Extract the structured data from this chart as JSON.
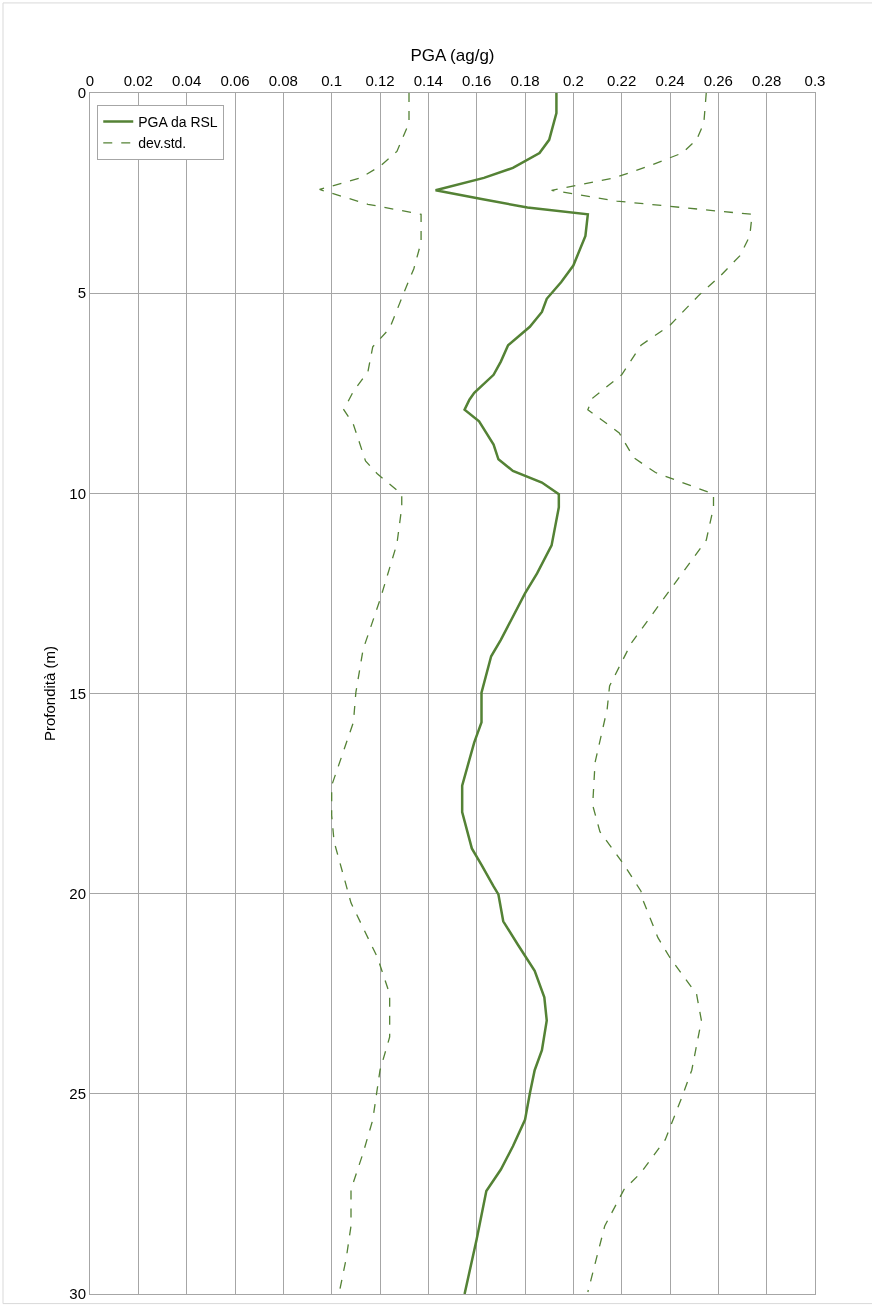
{
  "chart_data": {
    "type": "line",
    "xlabel": "PGA (ag/g)",
    "ylabel": "Profondità (m)",
    "xlim": [
      0,
      0.3
    ],
    "xticks": [
      0,
      0.02,
      0.04,
      0.06,
      0.08,
      0.1,
      0.12,
      0.14,
      0.16,
      0.18,
      0.2,
      0.22,
      0.24,
      0.26,
      0.28,
      0.3
    ],
    "ylim": [
      30,
      0
    ],
    "yticks": [
      0,
      5,
      10,
      15,
      20,
      25,
      30
    ],
    "grid": true,
    "legend": "top left",
    "marker": "none",
    "series": [
      {
        "name": "PGA da RSL",
        "color": "#548235",
        "line_style": "solid",
        "x": [
          0.193,
          0.193,
          0.19,
          0.186,
          0.175,
          0.163,
          0.143,
          0.162,
          0.181,
          0.206,
          0.205,
          0.2,
          0.195,
          0.189,
          0.187,
          0.182,
          0.173,
          0.17,
          0.167,
          0.159,
          0.157,
          0.155,
          0.161,
          0.167,
          0.169,
          0.175,
          0.187,
          0.194,
          0.194,
          0.191,
          0.185,
          0.18,
          0.17,
          0.166,
          0.162,
          0.162,
          0.159,
          0.154,
          0.154,
          0.158,
          0.162,
          0.167,
          0.169,
          0.171,
          0.177,
          0.184,
          0.188,
          0.189,
          0.187,
          0.184,
          0.182,
          0.18,
          0.175,
          0.17,
          0.164,
          0.16,
          0.155
        ],
        "values": [
          0,
          0.5,
          1.17,
          1.5,
          1.87,
          2.12,
          2.43,
          2.65,
          2.86,
          3.03,
          3.57,
          4.31,
          4.72,
          5.14,
          5.47,
          5.84,
          6.3,
          6.71,
          7.04,
          7.49,
          7.66,
          7.91,
          8.2,
          8.78,
          9.15,
          9.44,
          9.73,
          10.02,
          10.35,
          11.3,
          12.0,
          12.5,
          13.66,
          14.07,
          14.98,
          15.72,
          16.22,
          17.3,
          17.96,
          18.87,
          19.28,
          19.82,
          20.02,
          20.69,
          21.27,
          21.93,
          22.59,
          23.17,
          23.91,
          24.41,
          24.99,
          25.65,
          26.31,
          26.89,
          27.43,
          28.63,
          30.0
        ]
      },
      {
        "name": "dev.std.",
        "color": "#548235",
        "line_style": "dashed",
        "x": [
          0.132,
          0.132,
          0.127,
          0.12,
          0.112,
          0.095,
          0.115,
          0.137,
          0.137,
          0.134,
          0.13,
          0.124,
          0.117,
          0.115,
          0.109,
          0.105,
          0.109,
          0.114,
          0.119,
          0.129,
          0.129,
          0.127,
          0.12,
          0.113,
          0.11,
          0.109,
          0.1,
          0.1,
          0.101,
          0.108,
          0.119,
          0.124,
          0.124,
          0.12,
          0.117,
          0.113,
          0.108,
          0.108,
          0.106,
          0.103
        ],
        "values": [
          0,
          0.75,
          1.46,
          1.83,
          2.12,
          2.41,
          2.78,
          3.03,
          3.73,
          4.39,
          4.97,
          5.88,
          6.34,
          6.96,
          7.45,
          7.91,
          8.28,
          9.19,
          9.52,
          10.02,
          10.35,
          11.26,
          12.66,
          13.9,
          14.98,
          15.72,
          17.3,
          18.04,
          18.7,
          20.23,
          21.6,
          22.51,
          23.58,
          24.41,
          25.65,
          26.48,
          27.39,
          28.3,
          29.12,
          30.0
        ]
      },
      {
        "color": "#548235",
        "line_style": "dashed",
        "x": [
          0.255,
          0.254,
          0.251,
          0.245,
          0.231,
          0.217,
          0.191,
          0.218,
          0.26,
          0.274,
          0.273,
          0.269,
          0.261,
          0.252,
          0.24,
          0.228,
          0.22,
          0.208,
          0.206,
          0.219,
          0.225,
          0.234,
          0.258,
          0.258,
          0.255,
          0.242,
          0.224,
          0.215,
          0.214,
          0.209,
          0.208,
          0.211,
          0.221,
          0.228,
          0.229,
          0.235,
          0.24,
          0.251,
          0.253,
          0.249,
          0.245,
          0.238,
          0.228,
          0.221,
          0.213,
          0.206
        ],
        "values": [
          0,
          0.75,
          1.17,
          1.5,
          1.83,
          2.12,
          2.43,
          2.7,
          2.95,
          3.03,
          3.57,
          4.06,
          4.56,
          5.05,
          5.8,
          6.3,
          7.04,
          7.62,
          7.91,
          8.49,
          9.11,
          9.48,
          10.02,
          10.35,
          11.17,
          12.25,
          13.74,
          14.81,
          15.39,
          16.72,
          17.79,
          18.45,
          19.28,
          19.94,
          20.19,
          21.1,
          21.6,
          22.51,
          23.17,
          24.41,
          25.07,
          26.15,
          26.97,
          27.39,
          28.3,
          29.95
        ]
      }
    ]
  }
}
